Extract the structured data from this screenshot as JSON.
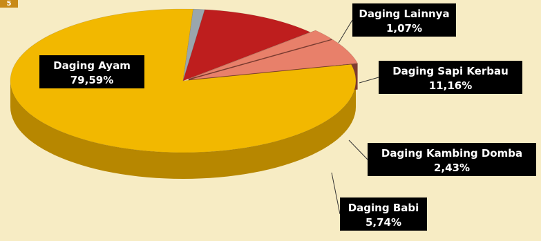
{
  "figure_number": "5",
  "chart_data": {
    "type": "pie",
    "title": "",
    "slices": [
      {
        "label": "Daging Ayam",
        "value": 79.59,
        "value_text": "79,59%",
        "color": "#f2b800",
        "side_color": "#b78700"
      },
      {
        "label": "Daging Lainnya",
        "value": 1.07,
        "value_text": "1,07%",
        "color": "#9aa6ad",
        "side_color": "#5f6a70"
      },
      {
        "label": "Daging Sapi Kerbau",
        "value": 11.16,
        "value_text": "11,16%",
        "color": "#be1e1e",
        "side_color": "#6b0f0f"
      },
      {
        "label": "Daging Kambing Domba",
        "value": 2.43,
        "value_text": "2,43%",
        "color": "#e8806a",
        "side_color": "#7e3b30"
      },
      {
        "label": "Daging Babi",
        "value": 5.74,
        "value_text": "5,74%",
        "color": "#e8806a",
        "side_color": "#7e3b30"
      }
    ]
  }
}
